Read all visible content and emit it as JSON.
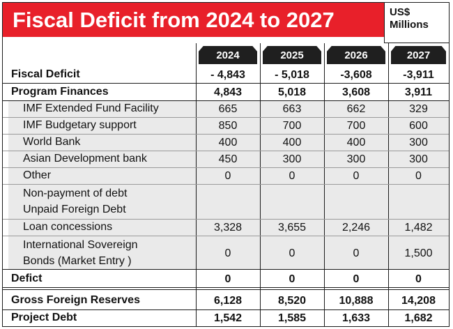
{
  "title": "Fiscal Deficit from 2024 to 2027",
  "unit": [
    "US$",
    "Millions"
  ],
  "years": [
    "2024",
    "2025",
    "2026",
    "2027"
  ],
  "rows": [
    {
      "label": "Fiscal Deficit",
      "values": [
        "- 4,843",
        "- 5,018",
        "-3,608",
        "-3,911"
      ],
      "style": "bold"
    },
    {
      "label": "Program Finances",
      "values": [
        "4,843",
        "5,018",
        "3,608",
        "3,911"
      ],
      "style": "bold"
    },
    {
      "label": "IMF Extended Fund Facility",
      "values": [
        "665",
        "663",
        "662",
        "329"
      ],
      "style": "sub"
    },
    {
      "label": "IMF  Budgetary support",
      "values": [
        "850",
        "700",
        "700",
        "600"
      ],
      "style": "sub"
    },
    {
      "label": "World Bank",
      "values": [
        "400",
        "400",
        "400",
        "300"
      ],
      "style": "sub"
    },
    {
      "label": "Asian Development bank",
      "values": [
        "450",
        "300",
        "300",
        "300"
      ],
      "style": "sub"
    },
    {
      "label": "Other",
      "values": [
        "0",
        "0",
        "0",
        "0"
      ],
      "style": "sub"
    },
    {
      "label": "Non-payment of debt",
      "label2": "Unpaid Foreign Debt",
      "values": [
        "",
        "",
        "",
        ""
      ],
      "style": "sub"
    },
    {
      "label": "Loan concessions",
      "values": [
        "3,328",
        "3,655",
        "2,246",
        "1,482"
      ],
      "style": "sub"
    },
    {
      "label": "International Sovereign",
      "label2": "Bonds (Market Entry )",
      "values": [
        "0",
        "0",
        "0",
        "1,500"
      ],
      "style": "sub"
    },
    {
      "label": "Defict",
      "values": [
        "0",
        "0",
        "0",
        "0"
      ],
      "style": "bold"
    },
    {
      "label": "Gross Foreign Reserves",
      "values": [
        "6,128",
        "8,520",
        "10,888",
        "14,208"
      ],
      "style": "bold"
    },
    {
      "label": "Project Debt",
      "values": [
        "1,542",
        "1,585",
        "1,633",
        "1,682"
      ],
      "style": "bold"
    }
  ]
}
